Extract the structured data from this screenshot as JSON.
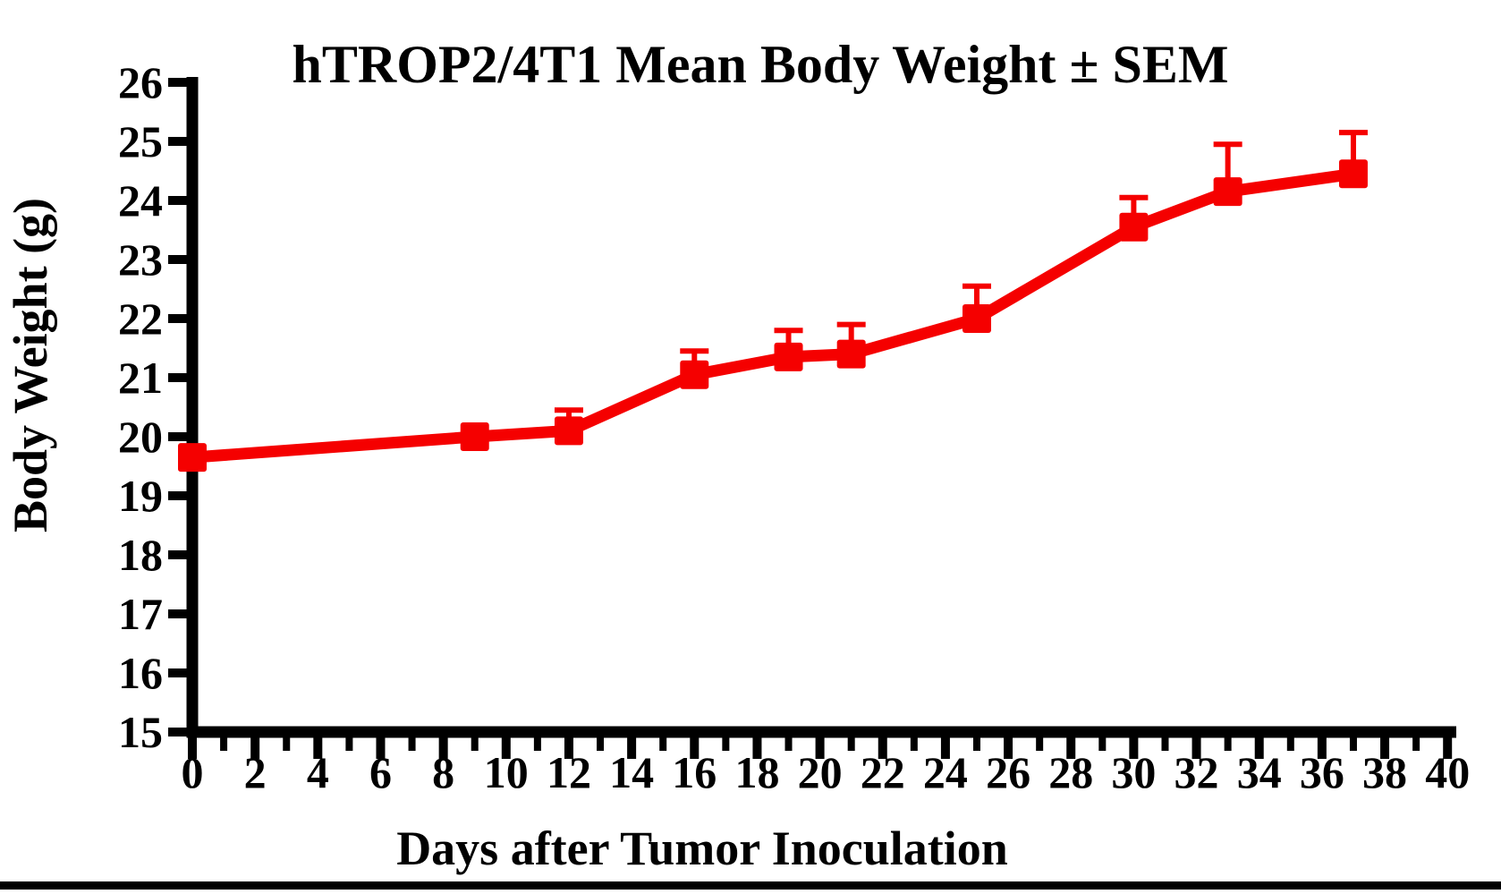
{
  "figure": {
    "bottom_bar_color": "#000000",
    "background_color": "#ffffff",
    "axis_color": "#000000"
  },
  "chart_data": {
    "type": "line",
    "title": "hTROP2/4T1 Mean Body Weight ± SEM",
    "xlabel": "Days after Tumor Inoculation",
    "ylabel": "Body Weight (g)",
    "xlim": [
      0,
      40
    ],
    "ylim": [
      15,
      26
    ],
    "grid": false,
    "legend_position": "none",
    "error_bars": "upper-only",
    "x_tick_labels": [
      "0",
      "2",
      "4",
      "6",
      "8",
      "10",
      "12",
      "14",
      "16",
      "18",
      "20",
      "22",
      "24",
      "26",
      "28",
      "30",
      "32",
      "34",
      "36",
      "38",
      "40"
    ],
    "x_major_tick_values": [
      0,
      2,
      4,
      6,
      8,
      10,
      12,
      14,
      16,
      18,
      20,
      22,
      24,
      26,
      28,
      30,
      32,
      34,
      36,
      38,
      40
    ],
    "x_minor_tick_values": [
      1,
      3,
      5,
      7,
      9,
      11,
      13,
      15,
      17,
      19,
      21,
      23,
      25,
      27,
      29,
      31,
      33,
      35,
      37,
      39
    ],
    "y_tick_labels": [
      "15",
      "16",
      "17",
      "18",
      "19",
      "20",
      "21",
      "22",
      "23",
      "24",
      "25",
      "26"
    ],
    "y_major_tick_values": [
      15,
      16,
      17,
      18,
      19,
      20,
      21,
      22,
      23,
      24,
      25,
      26
    ],
    "x": [
      0,
      9,
      12,
      16,
      19,
      21,
      25,
      30,
      33,
      37
    ],
    "series": [
      {
        "name": "hTROP2/4T1 Mean Body Weight",
        "color": "#f50000",
        "marker": "square",
        "values": [
          19.65,
          20.0,
          20.1,
          21.05,
          21.35,
          21.4,
          22.0,
          23.55,
          24.15,
          24.45
        ],
        "sem_upper": [
          0,
          0,
          0.35,
          0.4,
          0.45,
          0.5,
          0.55,
          0.5,
          0.8,
          0.7
        ]
      }
    ]
  }
}
